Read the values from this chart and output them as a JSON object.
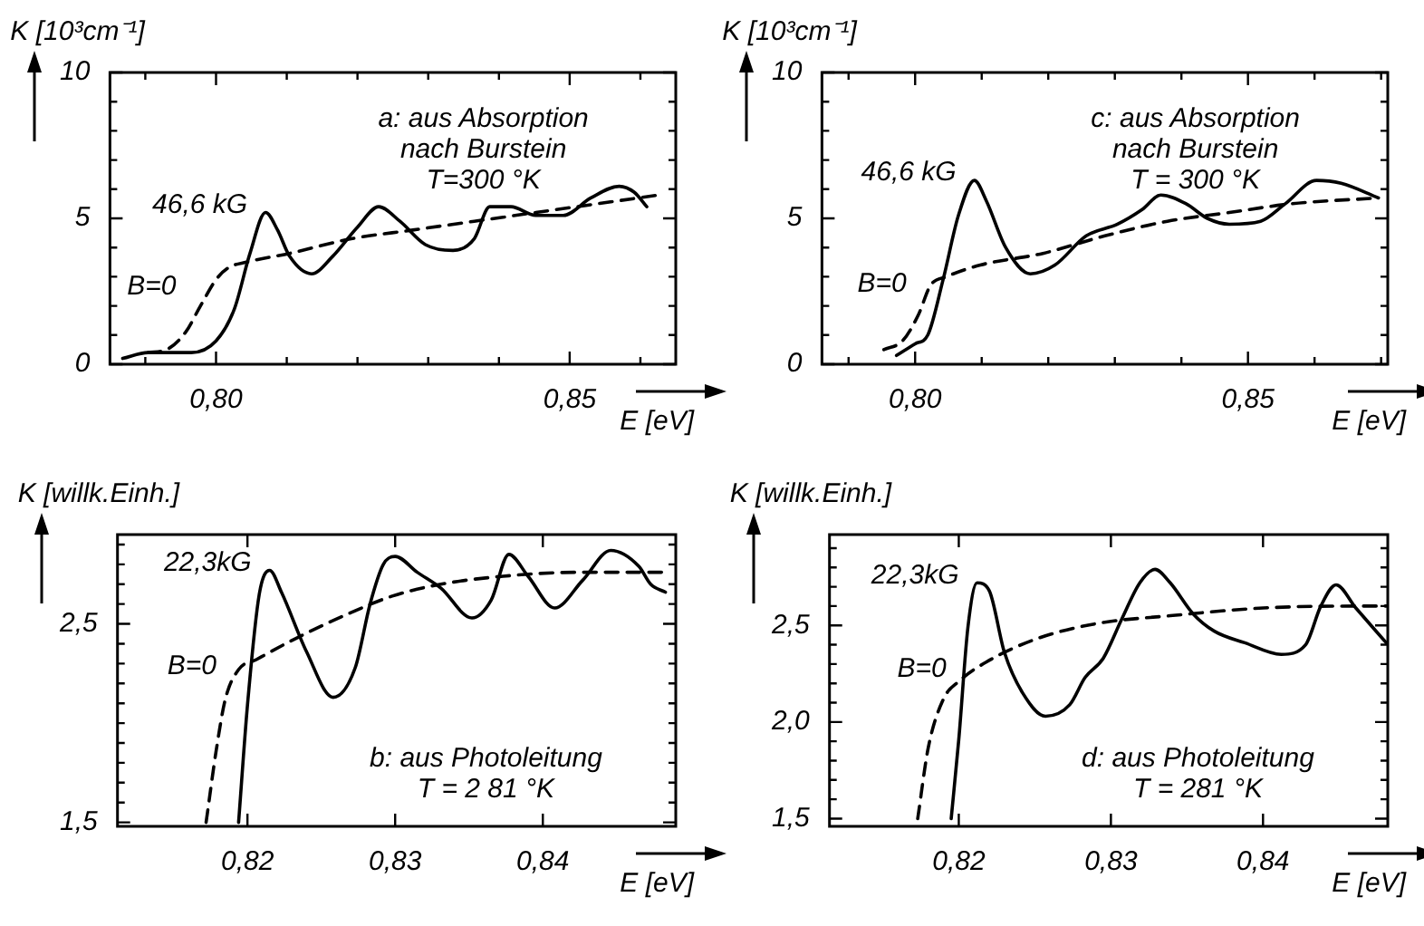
{
  "chart_data": [
    {
      "type": "line",
      "xlabel": "E [eV]",
      "ylabel": "K [10³cm⁻¹]",
      "annotations": [
        "a: aus Absorption\nnach Burstein\nT=300 °K"
      ],
      "xlim": [
        0.785,
        0.865
      ],
      "ylim": [
        0,
        10
      ],
      "xticks": [
        {
          "value": 0.79,
          "label": null
        },
        {
          "value": 0.8,
          "label": "0,80"
        },
        {
          "value": 0.81,
          "label": null
        },
        {
          "value": 0.82,
          "label": null
        },
        {
          "value": 0.83,
          "label": null
        },
        {
          "value": 0.84,
          "label": null
        },
        {
          "value": 0.85,
          "label": "0,85"
        },
        {
          "value": 0.86,
          "label": null
        }
      ],
      "yticks": [
        0,
        {
          "value": 1,
          "label": null
        },
        {
          "value": 2,
          "label": null
        },
        {
          "value": 3,
          "label": null
        },
        {
          "value": 4,
          "label": null
        },
        5,
        {
          "value": 6,
          "label": null
        },
        {
          "value": 7,
          "label": null
        },
        {
          "value": 8,
          "label": null
        },
        {
          "value": 9,
          "label": null
        },
        10
      ],
      "series": [
        {
          "name": "46,6 kG",
          "color": "#000000",
          "line_style": "solid",
          "x": [
            0.7868,
            0.7904,
            0.793,
            0.7965,
            0.8,
            0.8026,
            0.8048,
            0.807,
            0.8087,
            0.8104,
            0.8135,
            0.8165,
            0.82,
            0.823,
            0.826,
            0.8296,
            0.8335,
            0.8365,
            0.8387,
            0.8417,
            0.8452,
            0.8491,
            0.853,
            0.857,
            0.8591,
            0.8609
          ],
          "values": [
            0.2,
            0.4,
            0.4,
            0.4,
            0.8,
            1.9,
            3.8,
            5.2,
            4.6,
            3.7,
            3.1,
            3.7,
            4.7,
            5.4,
            4.9,
            4.1,
            3.9,
            4.3,
            5.4,
            5.4,
            5.1,
            5.1,
            5.7,
            6.1,
            5.9,
            5.4
          ]
        },
        {
          "name": "B=0",
          "color": "#000000",
          "line_style": "dashed",
          "x": [
            0.7904,
            0.793,
            0.7957,
            0.7978,
            0.8,
            0.8017,
            0.8043,
            0.8104,
            0.8191,
            0.8278,
            0.8365,
            0.8452,
            0.8539,
            0.8626
          ],
          "values": [
            0.4,
            0.5,
            1.1,
            2.0,
            2.9,
            3.3,
            3.5,
            3.8,
            4.3,
            4.6,
            4.9,
            5.2,
            5.5,
            5.8
          ]
        }
      ]
    },
    {
      "type": "line",
      "xlabel": "E [eV]",
      "ylabel": "K [10³cm⁻¹]",
      "annotations": [
        "c: aus Absorption\nnach Burstein\nT = 300 °K"
      ],
      "xlim": [
        0.786,
        0.871
      ],
      "ylim": [
        0,
        10
      ],
      "xticks": [
        {
          "value": 0.79,
          "label": null
        },
        {
          "value": 0.8,
          "label": "0,80"
        },
        {
          "value": 0.81,
          "label": null
        },
        {
          "value": 0.82,
          "label": null
        },
        {
          "value": 0.83,
          "label": null
        },
        {
          "value": 0.84,
          "label": null
        },
        {
          "value": 0.85,
          "label": "0,85"
        },
        {
          "value": 0.86,
          "label": null
        },
        {
          "value": 0.87,
          "label": null
        }
      ],
      "yticks": [
        0,
        {
          "value": 1,
          "label": null
        },
        {
          "value": 2,
          "label": null
        },
        {
          "value": 3,
          "label": null
        },
        {
          "value": 4,
          "label": null
        },
        5,
        {
          "value": 6,
          "label": null
        },
        {
          "value": 7,
          "label": null
        },
        {
          "value": 8,
          "label": null
        },
        {
          "value": 9,
          "label": null
        },
        10
      ],
      "series": [
        {
          "name": "46,6 kG",
          "color": "#000000",
          "line_style": "solid",
          "x": [
            0.7972,
            0.8,
            0.8019,
            0.8042,
            0.8065,
            0.8089,
            0.8107,
            0.8136,
            0.8173,
            0.821,
            0.8257,
            0.8304,
            0.8341,
            0.8369,
            0.8407,
            0.8439,
            0.8472,
            0.8519,
            0.8556,
            0.8603,
            0.864,
            0.8696
          ],
          "values": [
            0.3,
            0.7,
            1.0,
            2.9,
            5.1,
            6.3,
            5.6,
            4.0,
            3.1,
            3.4,
            4.4,
            4.8,
            5.3,
            5.8,
            5.5,
            5.0,
            4.8,
            4.9,
            5.5,
            6.3,
            6.2,
            5.7
          ]
        },
        {
          "name": "B=0",
          "color": "#000000",
          "line_style": "dashed",
          "x": [
            0.7953,
            0.7981,
            0.8005,
            0.8023,
            0.8047,
            0.8098,
            0.8192,
            0.8285,
            0.8379,
            0.8472,
            0.8565,
            0.8696
          ],
          "values": [
            0.5,
            0.8,
            1.7,
            2.7,
            3.0,
            3.4,
            3.8,
            4.4,
            4.9,
            5.2,
            5.5,
            5.7
          ]
        }
      ]
    },
    {
      "type": "line",
      "xlabel": "E [eV]",
      "ylabel": "K [willk.Einh.]",
      "annotations": [
        "b: aus Photoleitung\nT = 2 81 °K"
      ],
      "xlim": [
        0.8112,
        0.849
      ],
      "ylim": [
        1.48,
        2.95
      ],
      "xticks": [
        {
          "value": 0.82,
          "label": "0,82"
        },
        {
          "value": 0.83,
          "label": "0,83"
        },
        {
          "value": 0.84,
          "label": "0,84"
        }
      ],
      "yticks": [
        {
          "value": 1.5,
          "label": "1,5"
        },
        {
          "value": 1.6,
          "label": null
        },
        {
          "value": 1.7,
          "label": null
        },
        {
          "value": 1.8,
          "label": null
        },
        {
          "value": 1.9,
          "label": null
        },
        {
          "value": 2.0,
          "label": null
        },
        {
          "value": 2.1,
          "label": null
        },
        {
          "value": 2.2,
          "label": null
        },
        {
          "value": 2.3,
          "label": null
        },
        {
          "value": 2.4,
          "label": null
        },
        {
          "value": 2.5,
          "label": "2,5"
        },
        {
          "value": 2.6,
          "label": null
        },
        {
          "value": 2.7,
          "label": null
        },
        {
          "value": 2.8,
          "label": null
        },
        {
          "value": 2.9,
          "label": null
        }
      ],
      "series": [
        {
          "name": "22,3kG",
          "color": "#000000",
          "line_style": "solid",
          "x": [
            0.8194,
            0.82,
            0.8208,
            0.8215,
            0.8223,
            0.824,
            0.8258,
            0.8273,
            0.8283,
            0.8292,
            0.83,
            0.8315,
            0.8331,
            0.8352,
            0.8365,
            0.8377,
            0.839,
            0.8408,
            0.8427,
            0.8446,
            0.8465,
            0.8473,
            0.8483
          ],
          "values": [
            1.5,
            2.09,
            2.65,
            2.77,
            2.66,
            2.36,
            2.13,
            2.28,
            2.6,
            2.8,
            2.84,
            2.76,
            2.68,
            2.53,
            2.62,
            2.85,
            2.74,
            2.58,
            2.72,
            2.87,
            2.79,
            2.7,
            2.66
          ]
        },
        {
          "name": "B=0",
          "color": "#000000",
          "line_style": "dashed",
          "x": [
            0.8172,
            0.8179,
            0.8185,
            0.8194,
            0.8206,
            0.8231,
            0.8265,
            0.8298,
            0.8331,
            0.8373,
            0.8423,
            0.8485
          ],
          "values": [
            1.5,
            1.87,
            2.12,
            2.27,
            2.32,
            2.42,
            2.54,
            2.64,
            2.7,
            2.74,
            2.76,
            2.76
          ]
        }
      ]
    },
    {
      "type": "line",
      "xlabel": "E [eV]",
      "ylabel": "K [willk.Einh.]",
      "annotations": [
        "d: aus Photoleitung\nT = 281 °K"
      ],
      "xlim": [
        0.8115,
        0.8482
      ],
      "ylim": [
        1.46,
        2.97
      ],
      "xticks": [
        {
          "value": 0.82,
          "label": "0,82"
        },
        {
          "value": 0.83,
          "label": "0,83"
        },
        {
          "value": 0.84,
          "label": "0,84"
        }
      ],
      "yticks": [
        {
          "value": 1.5,
          "label": "1,5"
        },
        {
          "value": 1.6,
          "label": null
        },
        {
          "value": 1.7,
          "label": null
        },
        {
          "value": 1.8,
          "label": null
        },
        {
          "value": 1.9,
          "label": null
        },
        {
          "value": 2.0,
          "label": "2,0"
        },
        {
          "value": 2.1,
          "label": null
        },
        {
          "value": 2.2,
          "label": null
        },
        {
          "value": 2.3,
          "label": null
        },
        {
          "value": 2.4,
          "label": null
        },
        {
          "value": 2.5,
          "label": "2,5"
        },
        {
          "value": 2.6,
          "label": null
        },
        {
          "value": 2.7,
          "label": null
        },
        {
          "value": 2.8,
          "label": null
        },
        {
          "value": 2.9,
          "label": null
        }
      ],
      "series": [
        {
          "name": "22,3kG",
          "color": "#000000",
          "line_style": "solid",
          "x": [
            0.8195,
            0.82,
            0.8206,
            0.8212,
            0.822,
            0.823,
            0.8242,
            0.8257,
            0.8273,
            0.8283,
            0.8295,
            0.8307,
            0.8319,
            0.8329,
            0.8339,
            0.8354,
            0.8368,
            0.8388,
            0.8412,
            0.8428,
            0.8438,
            0.8448,
            0.8461,
            0.8481
          ],
          "values": [
            1.5,
            1.91,
            2.49,
            2.72,
            2.68,
            2.36,
            2.15,
            2.03,
            2.09,
            2.23,
            2.33,
            2.53,
            2.72,
            2.79,
            2.72,
            2.56,
            2.47,
            2.41,
            2.35,
            2.4,
            2.6,
            2.71,
            2.59,
            2.41
          ]
        },
        {
          "name": "B=0",
          "color": "#000000",
          "line_style": "dashed",
          "x": [
            0.8173,
            0.818,
            0.819,
            0.82,
            0.8218,
            0.8251,
            0.8291,
            0.8339,
            0.84,
            0.8461,
            0.8481
          ],
          "values": [
            1.5,
            1.87,
            2.12,
            2.21,
            2.31,
            2.43,
            2.51,
            2.55,
            2.59,
            2.6,
            2.6
          ]
        }
      ]
    }
  ]
}
